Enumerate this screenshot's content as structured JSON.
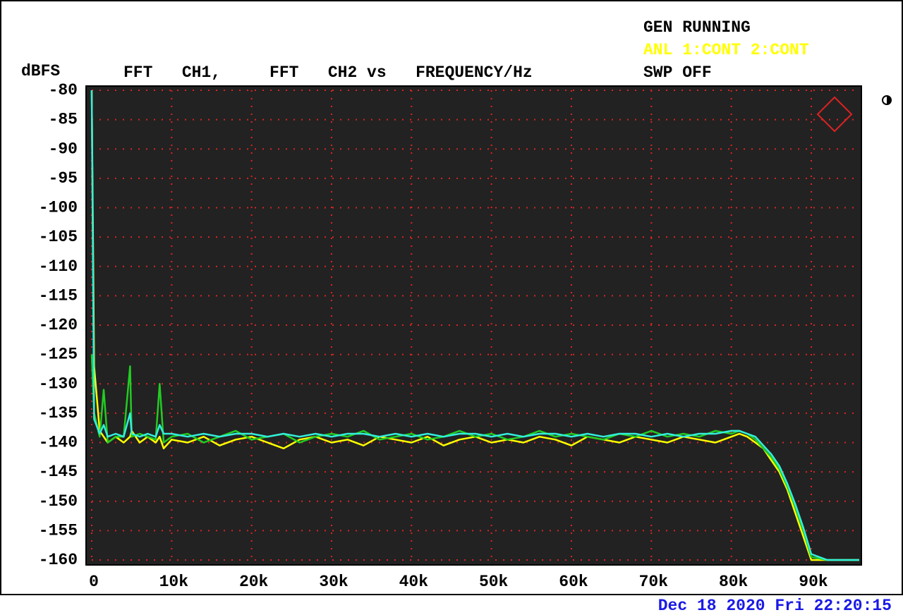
{
  "chart_data": {
    "type": "line",
    "title": "FFT   CH1,     FFT   CH2 vs   FREQUENCY/Hz",
    "y_label": "dBFS",
    "status": [
      {
        "text": "GEN RUNNING",
        "color": "#000000"
      },
      {
        "text": "ANL 1:CONT 2:CONT",
        "color": "#ffff00"
      },
      {
        "text": "SWP OFF",
        "color": "#000000"
      }
    ],
    "timestamp": "Dec 18 2020 Fri 22:20:15",
    "x": [
      0,
      300,
      1000,
      1500,
      2000,
      3000,
      4000,
      4800,
      5000,
      6000,
      7000,
      8000,
      8500,
      9000,
      10000,
      12000,
      14000,
      16000,
      18000,
      20000,
      22000,
      24000,
      26000,
      28000,
      30000,
      32000,
      34000,
      36000,
      38000,
      40000,
      42000,
      44000,
      46000,
      48000,
      50000,
      52000,
      54000,
      56000,
      58000,
      60000,
      62000,
      64000,
      66000,
      68000,
      70000,
      72000,
      74000,
      76000,
      78000,
      80000,
      81000,
      82000,
      83000,
      84000,
      85000,
      86000,
      87000,
      88000,
      89000,
      90000,
      92000,
      94000,
      96000
    ],
    "series": [
      {
        "color": "#ffff00",
        "values": [
          -80,
          -127,
          -138,
          -139,
          -140,
          -139,
          -140,
          -139,
          -138,
          -140,
          -139,
          -140,
          -139,
          -141,
          -139.5,
          -140,
          -139,
          -140.5,
          -139.5,
          -139,
          -140,
          -141,
          -139.5,
          -139,
          -140,
          -139.5,
          -140.5,
          -139,
          -139.5,
          -140,
          -139,
          -140.5,
          -139.5,
          -139,
          -140,
          -139.5,
          -140,
          -139,
          -139.5,
          -140.5,
          -139,
          -139.5,
          -140,
          -139,
          -139.5,
          -140,
          -139,
          -139.5,
          -140,
          -139,
          -138.5,
          -139,
          -140,
          -141,
          -143,
          -145,
          -148,
          -152,
          -156,
          -160,
          -160,
          -160,
          -160
        ]
      },
      {
        "color": "#22cc22",
        "values": [
          -125,
          -135,
          -139,
          -131,
          -140,
          -139,
          -139,
          -127,
          -139,
          -138.5,
          -139,
          -139.5,
          -130,
          -140,
          -139,
          -138.5,
          -140,
          -139,
          -138,
          -139.5,
          -139,
          -138.5,
          -140,
          -139,
          -138.5,
          -139,
          -138,
          -139.5,
          -139,
          -138.5,
          -139.5,
          -139,
          -138,
          -139,
          -138.5,
          -139.5,
          -139,
          -138,
          -139,
          -138.5,
          -139,
          -139.5,
          -138.5,
          -139,
          -138,
          -139,
          -138.5,
          -139,
          -138,
          -138.5,
          -138,
          -138.5,
          -139.5,
          -141,
          -142.5,
          -144.5,
          -147.5,
          -151,
          -155,
          -159.5,
          -160,
          -160,
          -160
        ]
      },
      {
        "color": "#33eedd",
        "values": [
          -80,
          -136,
          -138.5,
          -137,
          -139,
          -138.5,
          -139,
          -135,
          -138.5,
          -139,
          -138.5,
          -139,
          -137,
          -138.5,
          -138.5,
          -139,
          -138.5,
          -139,
          -138.5,
          -138.5,
          -139,
          -138.5,
          -139,
          -138.5,
          -139,
          -138.5,
          -138.5,
          -139,
          -138.5,
          -139,
          -138.5,
          -139,
          -138.5,
          -138.5,
          -139,
          -138.5,
          -139,
          -138.5,
          -138.5,
          -139,
          -138.5,
          -139,
          -138.5,
          -138.5,
          -139,
          -138.5,
          -139,
          -138.5,
          -138.5,
          -138,
          -138,
          -138.5,
          -139,
          -140.5,
          -142,
          -144,
          -147,
          -150.5,
          -154.5,
          -159,
          -160,
          -160,
          -160
        ]
      }
    ],
    "xlim": [
      0,
      96000
    ],
    "ylim": [
      -160,
      -80
    ],
    "xticks": [
      0,
      {
        "value": 10000,
        "label": "10k"
      },
      {
        "value": 20000,
        "label": "20k"
      },
      {
        "value": 30000,
        "label": "30k"
      },
      {
        "value": 40000,
        "label": "40k"
      },
      {
        "value": 50000,
        "label": "50k"
      },
      {
        "value": 60000,
        "label": "60k"
      },
      {
        "value": 70000,
        "label": "70k"
      },
      {
        "value": 80000,
        "label": "80k"
      },
      {
        "value": 90000,
        "label": "90k"
      }
    ],
    "yticks": [
      -80,
      -85,
      -90,
      -95,
      -100,
      -105,
      -110,
      -115,
      -120,
      -125,
      -130,
      -135,
      -140,
      -145,
      -150,
      -155,
      -160
    ],
    "grid": true,
    "grid_color": "#dd2222",
    "plot_background": "#222222"
  }
}
